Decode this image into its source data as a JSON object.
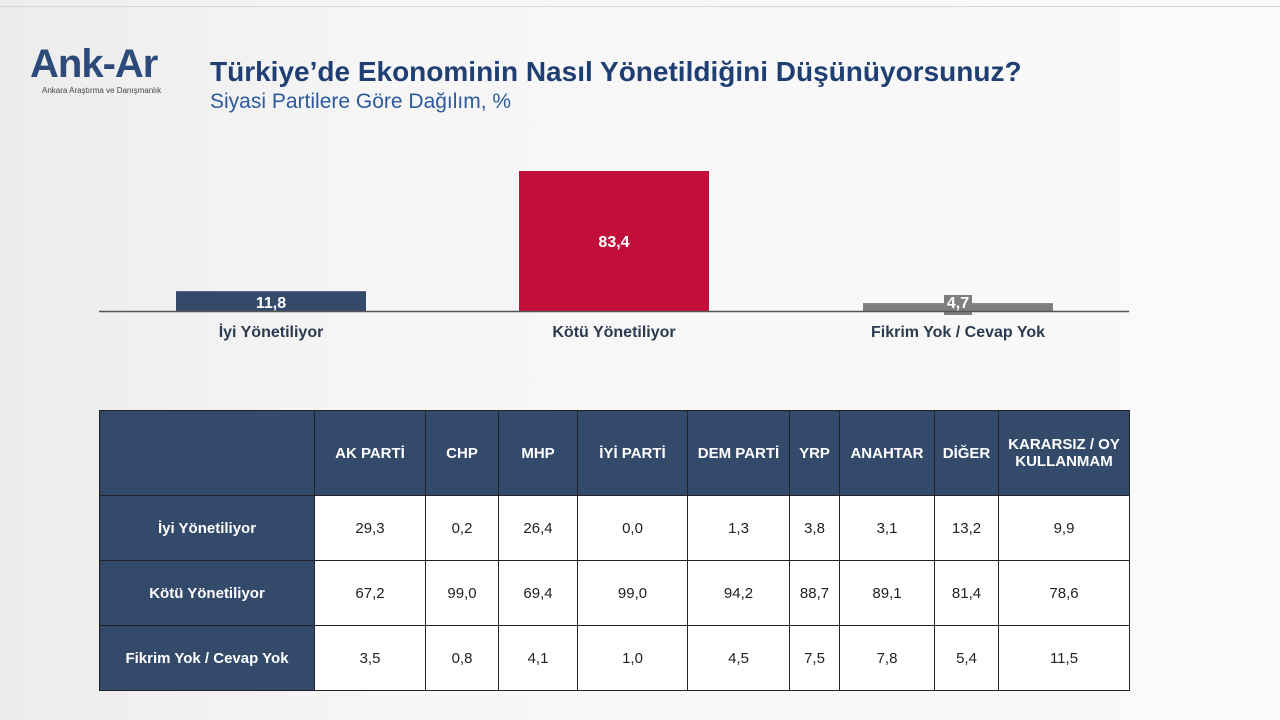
{
  "logo": {
    "name": "Ank-Ar",
    "tagline": "Ankara Araştırma ve Danışmanlık"
  },
  "title": "Türkiye’de Ekonominin Nasıl Yönetildiğini Düşünüyorsunuz?",
  "subtitle": "Siyasi Partilere Göre Dağılım, %",
  "chart_data": {
    "type": "bar",
    "categories": [
      "İyi Yönetiliyor",
      "Kötü Yönetiliyor",
      "Fikrim Yok / Cevap Yok"
    ],
    "values": [
      11.8,
      83.4,
      4.7
    ],
    "labels": [
      "11,8",
      "83,4",
      "4,7"
    ],
    "colors": [
      "#344a6b",
      "#c20f3a",
      "#7f7f7f"
    ],
    "ylim": [
      0,
      100
    ],
    "grid": false
  },
  "table": {
    "headers": [
      "AK PARTİ",
      "CHP",
      "MHP",
      "İYİ PARTİ",
      "DEM PARTİ",
      "YRP",
      "ANAHTAR",
      "DİĞER",
      "KARARSIZ / OY KULLANMAM"
    ],
    "rows": [
      {
        "label": "İyi Yönetiliyor",
        "values": [
          "29,3",
          "0,2",
          "26,4",
          "0,0",
          "1,3",
          "3,8",
          "3,1",
          "13,2",
          "9,9"
        ]
      },
      {
        "label": "Kötü Yönetiliyor",
        "values": [
          "67,2",
          "99,0",
          "69,4",
          "99,0",
          "94,2",
          "88,7",
          "89,1",
          "81,4",
          "78,6"
        ]
      },
      {
        "label": "Fikrim Yok / Cevap Yok",
        "values": [
          "3,5",
          "0,8",
          "4,1",
          "1,0",
          "4,5",
          "7,5",
          "7,8",
          "5,4",
          "11,5"
        ]
      }
    ]
  }
}
